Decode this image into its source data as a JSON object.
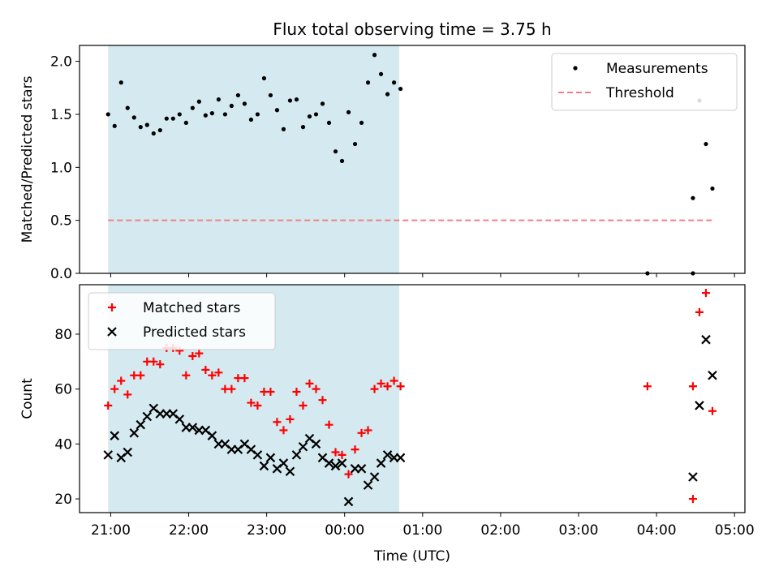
{
  "title": "Flux total observing time = 3.75 h",
  "colors": {
    "band": "#d4eaf0",
    "measurement": "#000000",
    "threshold": "#f08080",
    "matched": "#ff0000",
    "predicted": "#000000"
  },
  "chart_data": [
    {
      "type": "scatter",
      "panel": "top",
      "title": "Flux total observing time = 3.75 h",
      "xlabel": "",
      "ylabel": "Matched/Predicted stars",
      "xlim": [
        "20:36",
        "05:08"
      ],
      "ylim": [
        0,
        2.15
      ],
      "yticks": [
        "0.0",
        "0.5",
        "1.0",
        "1.5",
        "2.0"
      ],
      "shaded_interval": [
        "20:58",
        "00:42"
      ],
      "legend": {
        "position": "top-right",
        "entries": [
          "Measurements",
          "Threshold"
        ]
      },
      "series": [
        {
          "name": "Measurements",
          "marker": "dot",
          "points": [
            [
              "20:58",
              1.5
            ],
            [
              "21:03",
              1.39
            ],
            [
              "21:08",
              1.8
            ],
            [
              "21:13",
              1.56
            ],
            [
              "21:18",
              1.47
            ],
            [
              "21:23",
              1.38
            ],
            [
              "21:28",
              1.4
            ],
            [
              "21:33",
              1.32
            ],
            [
              "21:38",
              1.35
            ],
            [
              "21:43",
              1.46
            ],
            [
              "21:48",
              1.46
            ],
            [
              "21:53",
              1.5
            ],
            [
              "21:58",
              1.42
            ],
            [
              "22:03",
              1.56
            ],
            [
              "22:08",
              1.62
            ],
            [
              "22:13",
              1.49
            ],
            [
              "22:18",
              1.51
            ],
            [
              "22:23",
              1.64
            ],
            [
              "22:28",
              1.5
            ],
            [
              "22:33",
              1.58
            ],
            [
              "22:38",
              1.68
            ],
            [
              "22:43",
              1.6
            ],
            [
              "22:48",
              1.45
            ],
            [
              "22:53",
              1.5
            ],
            [
              "22:58",
              1.84
            ],
            [
              "23:03",
              1.68
            ],
            [
              "23:08",
              1.54
            ],
            [
              "23:13",
              1.36
            ],
            [
              "23:18",
              1.63
            ],
            [
              "23:23",
              1.64
            ],
            [
              "23:28",
              1.38
            ],
            [
              "23:33",
              1.48
            ],
            [
              "23:38",
              1.5
            ],
            [
              "23:43",
              1.6
            ],
            [
              "23:48",
              1.42
            ],
            [
              "23:53",
              1.15
            ],
            [
              "23:58",
              1.06
            ],
            [
              "00:03",
              1.52
            ],
            [
              "00:08",
              1.22
            ],
            [
              "00:13",
              1.42
            ],
            [
              "00:18",
              1.8
            ],
            [
              "00:23",
              2.06
            ],
            [
              "00:28",
              1.88
            ],
            [
              "00:33",
              1.69
            ],
            [
              "00:38",
              1.8
            ],
            [
              "00:43",
              1.74
            ],
            [
              "03:53",
              0.0
            ],
            [
              "04:28",
              0.0
            ],
            [
              "04:28",
              0.71
            ],
            [
              "04:33",
              1.63
            ],
            [
              "04:38",
              1.22
            ],
            [
              "04:43",
              0.8
            ]
          ]
        },
        {
          "name": "Threshold",
          "style": "dashed",
          "points": [
            [
              "20:58",
              0.5
            ],
            [
              "04:43",
              0.5
            ]
          ]
        }
      ]
    },
    {
      "type": "scatter",
      "panel": "bottom",
      "xlabel": "Time (UTC)",
      "ylabel": "Count",
      "xlim": [
        "20:36",
        "05:08"
      ],
      "ylim": [
        15,
        98
      ],
      "yticks": [
        "20",
        "40",
        "60",
        "80"
      ],
      "xticks": [
        "21:00",
        "22:00",
        "23:00",
        "00:00",
        "01:00",
        "02:00",
        "03:00",
        "04:00",
        "05:00"
      ],
      "shaded_interval": [
        "20:58",
        "00:42"
      ],
      "legend": {
        "position": "top-left",
        "entries": [
          "Matched stars",
          "Predicted stars"
        ]
      },
      "series": [
        {
          "name": "Matched stars",
          "marker": "plus",
          "points": [
            [
              "20:58",
              54
            ],
            [
              "21:03",
              60
            ],
            [
              "21:08",
              63
            ],
            [
              "21:13",
              58
            ],
            [
              "21:18",
              65
            ],
            [
              "21:23",
              65
            ],
            [
              "21:28",
              70
            ],
            [
              "21:33",
              70
            ],
            [
              "21:38",
              69
            ],
            [
              "21:43",
              75
            ],
            [
              "21:48",
              75
            ],
            [
              "21:53",
              74
            ],
            [
              "21:58",
              65
            ],
            [
              "22:03",
              72
            ],
            [
              "22:08",
              73
            ],
            [
              "22:13",
              67
            ],
            [
              "22:18",
              65
            ],
            [
              "22:23",
              66
            ],
            [
              "22:28",
              60
            ],
            [
              "22:33",
              60
            ],
            [
              "22:38",
              64
            ],
            [
              "22:43",
              64
            ],
            [
              "22:48",
              55
            ],
            [
              "22:53",
              54
            ],
            [
              "22:58",
              59
            ],
            [
              "23:03",
              59
            ],
            [
              "23:08",
              48
            ],
            [
              "23:13",
              45
            ],
            [
              "23:18",
              49
            ],
            [
              "23:23",
              59
            ],
            [
              "23:28",
              54
            ],
            [
              "23:33",
              62
            ],
            [
              "23:38",
              60
            ],
            [
              "23:43",
              56
            ],
            [
              "23:48",
              47
            ],
            [
              "23:53",
              37
            ],
            [
              "23:58",
              36
            ],
            [
              "00:03",
              29
            ],
            [
              "00:08",
              38
            ],
            [
              "00:13",
              44
            ],
            [
              "00:18",
              45
            ],
            [
              "00:23",
              60
            ],
            [
              "00:28",
              62
            ],
            [
              "00:33",
              61
            ],
            [
              "00:38",
              63
            ],
            [
              "00:43",
              61
            ],
            [
              "03:53",
              61
            ],
            [
              "04:28",
              61
            ],
            [
              "04:28",
              20
            ],
            [
              "04:33",
              88
            ],
            [
              "04:38",
              95
            ],
            [
              "04:43",
              52
            ]
          ]
        },
        {
          "name": "Predicted stars",
          "marker": "x",
          "points": [
            [
              "20:58",
              36
            ],
            [
              "21:03",
              43
            ],
            [
              "21:08",
              35
            ],
            [
              "21:13",
              37
            ],
            [
              "21:18",
              44
            ],
            [
              "21:23",
              47
            ],
            [
              "21:28",
              50
            ],
            [
              "21:33",
              53
            ],
            [
              "21:38",
              51
            ],
            [
              "21:43",
              51
            ],
            [
              "21:48",
              51
            ],
            [
              "21:53",
              49
            ],
            [
              "21:58",
              46
            ],
            [
              "22:03",
              46
            ],
            [
              "22:08",
              45
            ],
            [
              "22:13",
              45
            ],
            [
              "22:18",
              43
            ],
            [
              "22:23",
              40
            ],
            [
              "22:28",
              40
            ],
            [
              "22:33",
              38
            ],
            [
              "22:38",
              38
            ],
            [
              "22:43",
              40
            ],
            [
              "22:48",
              38
            ],
            [
              "22:53",
              36
            ],
            [
              "22:58",
              32
            ],
            [
              "23:03",
              35
            ],
            [
              "23:08",
              31
            ],
            [
              "23:13",
              33
            ],
            [
              "23:18",
              30
            ],
            [
              "23:23",
              36
            ],
            [
              "23:28",
              39
            ],
            [
              "23:33",
              42
            ],
            [
              "23:38",
              40
            ],
            [
              "23:43",
              35
            ],
            [
              "23:48",
              33
            ],
            [
              "23:53",
              32
            ],
            [
              "23:58",
              33
            ],
            [
              "00:03",
              19
            ],
            [
              "00:08",
              31
            ],
            [
              "00:13",
              31
            ],
            [
              "00:18",
              25
            ],
            [
              "00:23",
              28
            ],
            [
              "00:28",
              33
            ],
            [
              "00:33",
              36
            ],
            [
              "00:38",
              35
            ],
            [
              "00:43",
              35
            ],
            [
              "04:28",
              28
            ],
            [
              "04:33",
              54
            ],
            [
              "04:38",
              78
            ],
            [
              "04:43",
              65
            ]
          ]
        }
      ]
    }
  ]
}
